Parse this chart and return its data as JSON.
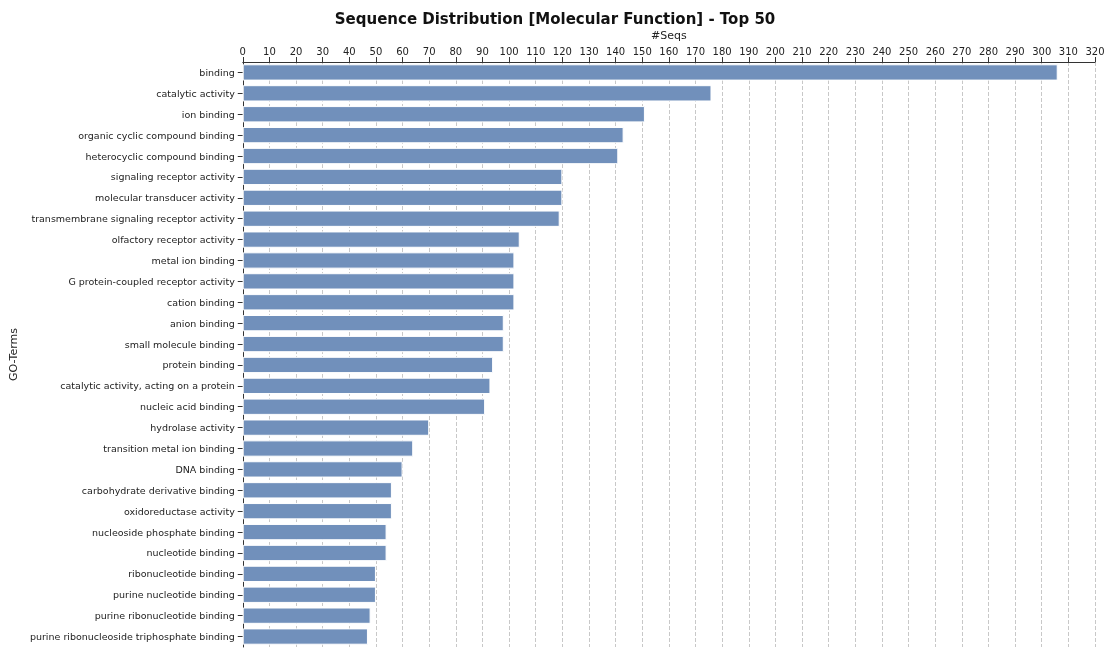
{
  "chart_data": {
    "type": "bar",
    "orientation": "horizontal",
    "title": "Sequence Distribution [Molecular Function] - Top 50",
    "xlabel": "#Seqs",
    "ylabel": "GO-Terms",
    "categories": [
      "binding",
      "catalytic activity",
      "ion binding",
      "organic cyclic compound binding",
      "heterocyclic compound binding",
      "signaling receptor activity",
      "molecular transducer activity",
      "transmembrane signaling receptor activity",
      "olfactory receptor activity",
      "metal ion binding",
      "G protein-coupled receptor activity",
      "cation binding",
      "anion binding",
      "small molecule binding",
      "protein binding",
      "catalytic activity, acting on a protein",
      "nucleic acid binding",
      "hydrolase activity",
      "transition metal ion binding",
      "DNA binding",
      "carbohydrate derivative binding",
      "oxidoreductase activity",
      "nucleoside phosphate binding",
      "nucleotide binding",
      "ribonucleotide binding",
      "purine nucleotide binding",
      "purine ribonucleotide binding",
      "purine ribonucleoside triphosphate binding"
    ],
    "values": [
      306,
      176,
      151,
      143,
      141,
      120,
      120,
      119,
      104,
      102,
      102,
      102,
      98,
      98,
      94,
      93,
      91,
      70,
      64,
      60,
      56,
      56,
      54,
      54,
      50,
      50,
      48,
      47
    ],
    "color": "#7190bb",
    "xlim": [
      0,
      320
    ],
    "xticks": [
      0,
      10,
      20,
      30,
      40,
      50,
      60,
      70,
      80,
      90,
      100,
      110,
      120,
      130,
      140,
      150,
      160,
      170,
      180,
      190,
      200,
      210,
      220,
      230,
      240,
      250,
      260,
      270,
      280,
      290,
      300,
      310,
      320
    ],
    "grid": "x"
  }
}
